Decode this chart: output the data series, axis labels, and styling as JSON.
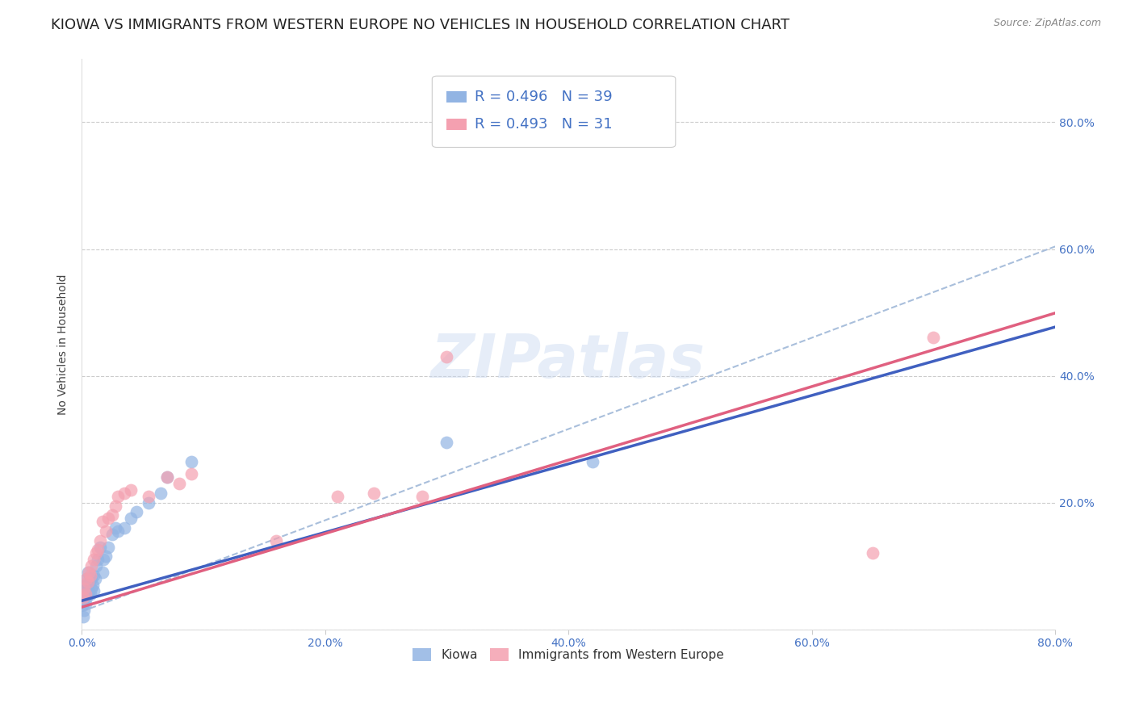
{
  "title": "KIOWA VS IMMIGRANTS FROM WESTERN EUROPE NO VEHICLES IN HOUSEHOLD CORRELATION CHART",
  "source": "Source: ZipAtlas.com",
  "ylabel": "No Vehicles in Household",
  "xlim": [
    0.0,
    0.8
  ],
  "ylim": [
    0.0,
    0.9
  ],
  "x_ticks": [
    0.0,
    0.2,
    0.4,
    0.6,
    0.8
  ],
  "x_tick_labels": [
    "0.0%",
    "20.0%",
    "40.0%",
    "60.0%",
    "80.0%"
  ],
  "y_ticks": [
    0.0,
    0.2,
    0.4,
    0.6,
    0.8
  ],
  "y_tick_labels": [
    "",
    "20.0%",
    "40.0%",
    "60.0%",
    "80.0%"
  ],
  "watermark": "ZIPatlas",
  "legend_labels": [
    "Kiowa",
    "Immigrants from Western Europe"
  ],
  "kiowa_color": "#92b4e3",
  "immigrants_color": "#f4a0b0",
  "kiowa_R": 0.496,
  "kiowa_N": 39,
  "immigrants_R": 0.493,
  "immigrants_N": 31,
  "kiowa_line_color": "#4060c0",
  "immigrants_line_color": "#e06080",
  "dashed_line_color": "#a0b8d8",
  "kiowa_x": [
    0.001,
    0.001,
    0.002,
    0.002,
    0.003,
    0.003,
    0.004,
    0.004,
    0.005,
    0.005,
    0.005,
    0.006,
    0.007,
    0.007,
    0.008,
    0.008,
    0.009,
    0.01,
    0.01,
    0.011,
    0.012,
    0.013,
    0.015,
    0.017,
    0.018,
    0.02,
    0.022,
    0.025,
    0.028,
    0.03,
    0.035,
    0.04,
    0.045,
    0.055,
    0.065,
    0.07,
    0.09,
    0.3,
    0.42
  ],
  "kiowa_y": [
    0.02,
    0.04,
    0.03,
    0.06,
    0.04,
    0.07,
    0.05,
    0.08,
    0.055,
    0.07,
    0.09,
    0.06,
    0.055,
    0.08,
    0.065,
    0.08,
    0.07,
    0.06,
    0.085,
    0.08,
    0.1,
    0.11,
    0.13,
    0.09,
    0.11,
    0.115,
    0.13,
    0.15,
    0.16,
    0.155,
    0.16,
    0.175,
    0.185,
    0.2,
    0.215,
    0.24,
    0.265,
    0.295,
    0.265
  ],
  "immigrants_x": [
    0.001,
    0.002,
    0.003,
    0.004,
    0.005,
    0.006,
    0.007,
    0.008,
    0.01,
    0.012,
    0.013,
    0.015,
    0.017,
    0.02,
    0.022,
    0.025,
    0.028,
    0.03,
    0.035,
    0.04,
    0.055,
    0.07,
    0.08,
    0.09,
    0.16,
    0.21,
    0.24,
    0.28,
    0.3,
    0.65,
    0.7
  ],
  "immigrants_y": [
    0.05,
    0.065,
    0.055,
    0.08,
    0.075,
    0.09,
    0.085,
    0.1,
    0.11,
    0.12,
    0.125,
    0.14,
    0.17,
    0.155,
    0.175,
    0.18,
    0.195,
    0.21,
    0.215,
    0.22,
    0.21,
    0.24,
    0.23,
    0.245,
    0.14,
    0.21,
    0.215,
    0.21,
    0.43,
    0.12,
    0.46
  ],
  "kiowa_line": {
    "slope": 0.54,
    "intercept": 0.045
  },
  "immigrants_line": {
    "slope": 0.58,
    "intercept": 0.035
  },
  "dashed_line": {
    "slope": 0.72,
    "intercept": 0.028
  },
  "background_color": "#ffffff",
  "grid_color": "#cccccc",
  "title_fontsize": 13,
  "axis_label_fontsize": 10,
  "tick_fontsize": 10,
  "tick_color": "#4472c4",
  "source_color": "#888888"
}
